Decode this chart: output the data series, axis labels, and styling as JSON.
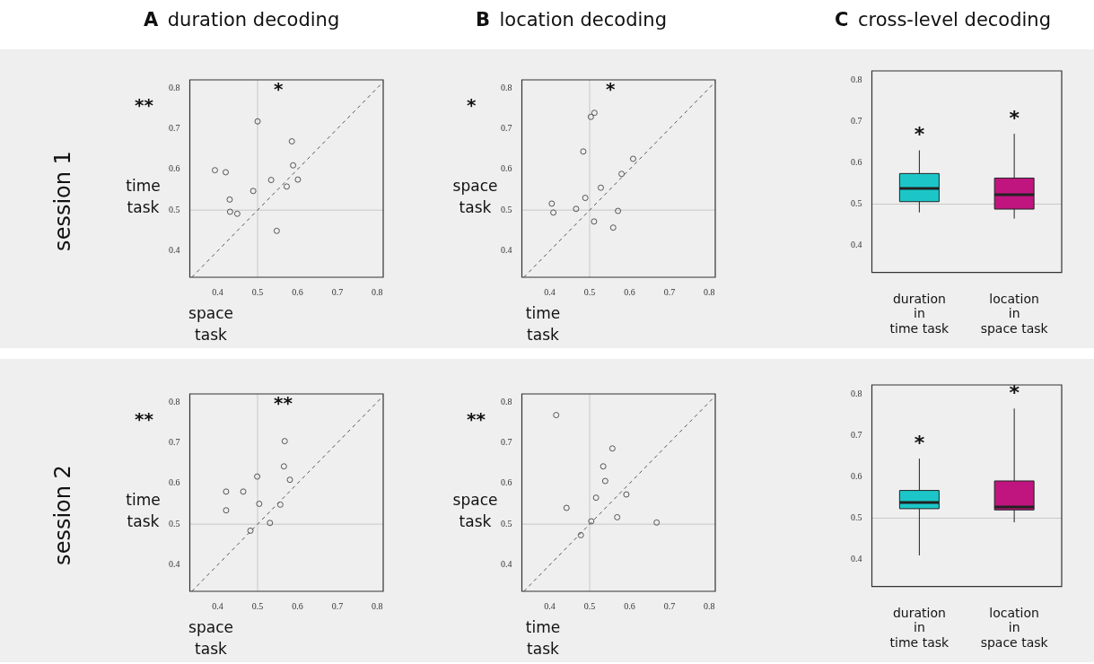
{
  "chart_data": [
    {
      "type": "scatter",
      "title": "A duration decoding",
      "xlabel": "space task",
      "ylabel": "time task",
      "annotations": [
        "session 1",
        "**",
        "*"
      ],
      "xlim": [
        0.33,
        0.815
      ],
      "ylim": [
        0.335,
        0.82
      ],
      "xticks": [
        0.4,
        0.5,
        0.6,
        0.7,
        0.8
      ],
      "yticks": [
        0.4,
        0.5,
        0.6,
        0.7,
        0.8
      ],
      "grid": false,
      "legend": false,
      "ref_lines": [
        {
          "axis": "x",
          "value": 0.5,
          "color": "#c8c8c8"
        },
        {
          "axis": "y",
          "value": 0.5,
          "color": "#c8c8c8"
        }
      ],
      "series": [
        {
          "type": "scatter",
          "color": "#555555",
          "marker": "circle",
          "x": [
            0.393,
            0.42,
            0.5,
            0.586,
            0.43,
            0.431,
            0.449,
            0.489,
            0.534,
            0.573,
            0.589,
            0.601,
            0.548
          ],
          "values": [
            0.598,
            0.593,
            0.718,
            0.669,
            0.526,
            0.496,
            0.491,
            0.547,
            0.574,
            0.558,
            0.61,
            0.575,
            0.449
          ]
        },
        {
          "type": "line",
          "color": "#555555",
          "marker": "none",
          "line_style": "dashed",
          "x": [
            0.335,
            0.815
          ],
          "values": [
            0.335,
            0.815
          ]
        }
      ]
    },
    {
      "type": "scatter",
      "title": "B location decoding",
      "xlabel": "time task",
      "ylabel": "space task",
      "annotations": [
        "*",
        "*"
      ],
      "xlim": [
        0.33,
        0.815
      ],
      "ylim": [
        0.335,
        0.82
      ],
      "xticks": [
        0.4,
        0.5,
        0.6,
        0.7,
        0.8
      ],
      "yticks": [
        0.4,
        0.5,
        0.6,
        0.7,
        0.8
      ],
      "grid": false,
      "legend": false,
      "ref_lines": [
        {
          "axis": "x",
          "value": 0.5,
          "color": "#c8c8c8"
        },
        {
          "axis": "y",
          "value": 0.5,
          "color": "#c8c8c8"
        }
      ],
      "series": [
        {
          "type": "scatter",
          "color": "#555555",
          "marker": "circle",
          "x": [
            0.405,
            0.409,
            0.466,
            0.484,
            0.489,
            0.503,
            0.512,
            0.511,
            0.528,
            0.571,
            0.559,
            0.58,
            0.609
          ],
          "values": [
            0.516,
            0.494,
            0.503,
            0.644,
            0.53,
            0.729,
            0.739,
            0.472,
            0.555,
            0.498,
            0.457,
            0.589,
            0.626
          ]
        },
        {
          "type": "line",
          "color": "#555555",
          "marker": "none",
          "line_style": "dashed",
          "x": [
            0.335,
            0.815
          ],
          "values": [
            0.335,
            0.815
          ]
        }
      ]
    },
    {
      "type": "box",
      "title": "C cross-level decoding",
      "categories": [
        "duration\nin\ntime task",
        "location\nin\nspace task"
      ],
      "colors": [
        "#1cc6c8",
        "#c0157f"
      ],
      "ylim": [
        0.335,
        0.822
      ],
      "yticks": [
        0.4,
        0.5,
        0.6,
        0.7,
        0.8
      ],
      "grid": false,
      "legend": false,
      "ref_lines": [
        {
          "axis": "y",
          "value": 0.5,
          "color": "#c8c8c8"
        }
      ],
      "boxes": [
        {
          "low": 0.48,
          "q1": 0.506,
          "median": 0.538,
          "q3": 0.574,
          "high": 0.63
        },
        {
          "low": 0.465,
          "q1": 0.488,
          "median": 0.523,
          "q3": 0.563,
          "high": 0.67
        }
      ],
      "annotations": [
        "*",
        "*"
      ]
    },
    {
      "type": "scatter",
      "xlabel": "space task",
      "ylabel": "time task",
      "annotations": [
        "session 2",
        "**",
        "**"
      ],
      "xlim": [
        0.33,
        0.815
      ],
      "ylim": [
        0.335,
        0.82
      ],
      "xticks": [
        0.4,
        0.5,
        0.6,
        0.7,
        0.8
      ],
      "yticks": [
        0.4,
        0.5,
        0.6,
        0.7,
        0.8
      ],
      "grid": false,
      "legend": false,
      "ref_lines": [
        {
          "axis": "x",
          "value": 0.5,
          "color": "#c8c8c8"
        },
        {
          "axis": "y",
          "value": 0.5,
          "color": "#c8c8c8"
        }
      ],
      "series": [
        {
          "type": "scatter",
          "color": "#555555",
          "marker": "circle",
          "x": [
            0.421,
            0.421,
            0.464,
            0.499,
            0.504,
            0.482,
            0.531,
            0.557,
            0.568,
            0.566,
            0.581
          ],
          "values": [
            0.58,
            0.534,
            0.58,
            0.617,
            0.55,
            0.484,
            0.503,
            0.548,
            0.704,
            0.642,
            0.609
          ]
        },
        {
          "type": "line",
          "color": "#555555",
          "marker": "none",
          "line_style": "dashed",
          "x": [
            0.335,
            0.815
          ],
          "values": [
            0.335,
            0.815
          ]
        }
      ]
    },
    {
      "type": "scatter",
      "xlabel": "time task",
      "ylabel": "space task",
      "annotations": [
        "**"
      ],
      "xlim": [
        0.33,
        0.815
      ],
      "ylim": [
        0.335,
        0.82
      ],
      "xticks": [
        0.4,
        0.5,
        0.6,
        0.7,
        0.8
      ],
      "yticks": [
        0.4,
        0.5,
        0.6,
        0.7,
        0.8
      ],
      "grid": false,
      "legend": false,
      "ref_lines": [
        {
          "axis": "x",
          "value": 0.5,
          "color": "#c8c8c8"
        },
        {
          "axis": "y",
          "value": 0.5,
          "color": "#c8c8c8"
        }
      ],
      "series": [
        {
          "type": "scatter",
          "color": "#555555",
          "marker": "circle",
          "x": [
            0.416,
            0.442,
            0.478,
            0.504,
            0.516,
            0.534,
            0.539,
            0.557,
            0.569,
            0.592,
            0.668
          ],
          "values": [
            0.768,
            0.54,
            0.473,
            0.507,
            0.565,
            0.642,
            0.606,
            0.686,
            0.517,
            0.573,
            0.504
          ]
        },
        {
          "type": "line",
          "color": "#555555",
          "marker": "none",
          "line_style": "dashed",
          "x": [
            0.335,
            0.815
          ],
          "values": [
            0.335,
            0.815
          ]
        }
      ]
    },
    {
      "type": "box",
      "categories": [
        "duration\nin\ntime task",
        "location\nin\nspace task"
      ],
      "colors": [
        "#1cc6c8",
        "#c0157f"
      ],
      "ylim": [
        0.335,
        0.822
      ],
      "yticks": [
        0.4,
        0.5,
        0.6,
        0.7,
        0.8
      ],
      "grid": false,
      "legend": false,
      "ref_lines": [
        {
          "axis": "y",
          "value": 0.5,
          "color": "#c8c8c8"
        }
      ],
      "boxes": [
        {
          "low": 0.41,
          "q1": 0.523,
          "median": 0.538,
          "q3": 0.567,
          "high": 0.644
        },
        {
          "low": 0.49,
          "q1": 0.52,
          "median": 0.527,
          "q3": 0.59,
          "high": 0.765
        }
      ],
      "annotations": [
        "*",
        "*"
      ]
    }
  ]
}
